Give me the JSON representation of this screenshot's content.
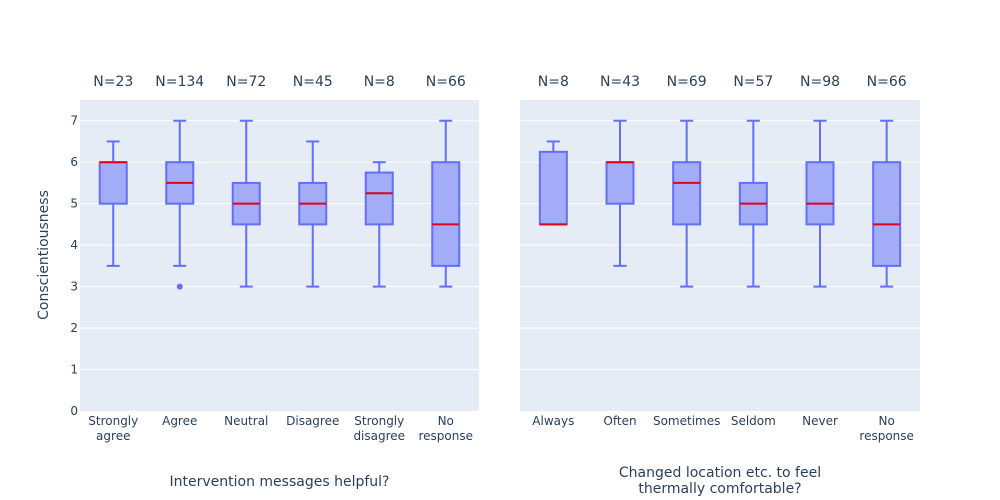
{
  "chart_data": {
    "type": "box",
    "ylabel": "Conscientiousness",
    "ylim": [
      0,
      7.5
    ],
    "yticks": [
      0,
      1,
      2,
      3,
      4,
      5,
      6,
      7
    ],
    "grid": true,
    "colors": {
      "box_fill": "#a3acf7",
      "box_line": "#636efa",
      "median": "#e0001b",
      "plot_bg": "#e5ecf6",
      "text": "#2a3f5f"
    },
    "panels": [
      {
        "xlabel": [
          "Intervention messages helpful?"
        ],
        "categories": [
          {
            "label": [
              "Strongly",
              "agree"
            ],
            "n": "N=23",
            "min": 3.5,
            "q1": 5,
            "median": 6,
            "q3": 6,
            "max": 6.5,
            "outliers": []
          },
          {
            "label": [
              "Agree"
            ],
            "n": "N=134",
            "min": 3.5,
            "q1": 5,
            "median": 5.5,
            "q3": 6,
            "max": 7,
            "outliers": [
              3
            ]
          },
          {
            "label": [
              "Neutral"
            ],
            "n": "N=72",
            "min": 3,
            "q1": 4.5,
            "median": 5,
            "q3": 5.5,
            "max": 7,
            "outliers": []
          },
          {
            "label": [
              "Disagree"
            ],
            "n": "N=45",
            "min": 3,
            "q1": 4.5,
            "median": 5,
            "q3": 5.5,
            "max": 6.5,
            "outliers": []
          },
          {
            "label": [
              "Strongly",
              "disagree"
            ],
            "n": "N=8",
            "min": 3,
            "q1": 4.5,
            "median": 5.25,
            "q3": 5.75,
            "max": 6,
            "outliers": []
          },
          {
            "label": [
              "No",
              "response"
            ],
            "n": "N=66",
            "min": 3,
            "q1": 3.5,
            "median": 4.5,
            "q3": 6,
            "max": 7,
            "outliers": []
          }
        ]
      },
      {
        "xlabel": [
          "Changed location etc. to feel",
          "thermally comfortable?"
        ],
        "categories": [
          {
            "label": [
              "Always"
            ],
            "n": "N=8",
            "min": 4.5,
            "q1": 4.5,
            "median": 4.5,
            "q3": 6.25,
            "max": 6.5,
            "outliers": []
          },
          {
            "label": [
              "Often"
            ],
            "n": "N=43",
            "min": 3.5,
            "q1": 5,
            "median": 6,
            "q3": 6,
            "max": 7,
            "outliers": []
          },
          {
            "label": [
              "Sometimes"
            ],
            "n": "N=69",
            "min": 3,
            "q1": 4.5,
            "median": 5.5,
            "q3": 6,
            "max": 7,
            "outliers": []
          },
          {
            "label": [
              "Seldom"
            ],
            "n": "N=57",
            "min": 3,
            "q1": 4.5,
            "median": 5,
            "q3": 5.5,
            "max": 7,
            "outliers": []
          },
          {
            "label": [
              "Never"
            ],
            "n": "N=98",
            "min": 3,
            "q1": 4.5,
            "median": 5,
            "q3": 6,
            "max": 7,
            "outliers": []
          },
          {
            "label": [
              "No",
              "response"
            ],
            "n": "N=66",
            "min": 3,
            "q1": 3.5,
            "median": 4.5,
            "q3": 6,
            "max": 7,
            "outliers": []
          }
        ]
      }
    ]
  }
}
